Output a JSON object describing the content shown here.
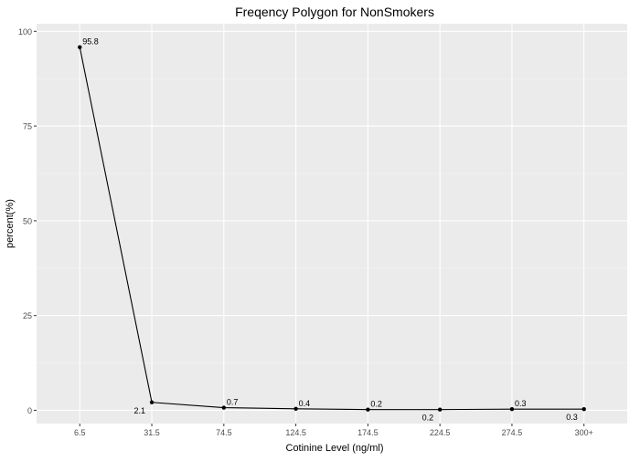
{
  "chart_data": {
    "type": "line",
    "title": "Freqency Polygon for NonSmokers",
    "xlabel": "Cotinine Level (ng/ml)",
    "ylabel": "percent(%)",
    "categories": [
      "6.5",
      "31.5",
      "74.5",
      "124.5",
      "174.5",
      "224.5",
      "274.5",
      "300+"
    ],
    "values": [
      95.8,
      2.1,
      0.7,
      0.4,
      0.2,
      0.2,
      0.3,
      0.3
    ],
    "data_labels": [
      {
        "index": 0,
        "text": "95.8",
        "side": "above-right"
      },
      {
        "index": 1,
        "text": "2.1",
        "side": "below-left"
      },
      {
        "index": 2,
        "text": "0.7",
        "side": "above-right"
      },
      {
        "index": 3,
        "text": "0.4",
        "side": "above-right"
      },
      {
        "index": 4,
        "text": "0.2",
        "side": "above-right"
      },
      {
        "index": 5,
        "text": "0.2",
        "side": "below-left"
      },
      {
        "index": 6,
        "text": "0.3",
        "side": "above-right"
      },
      {
        "index": 7,
        "text": "0.3",
        "side": "below-left"
      }
    ],
    "y_ticks": [
      0,
      25,
      50,
      75,
      100
    ],
    "ylim": [
      -3.5,
      102
    ],
    "grid": true,
    "colors": {
      "panel": "#EBEBEB",
      "grid_major": "#FFFFFF",
      "grid_minor": "#F5F5F5",
      "line": "#000000",
      "point": "#000000",
      "text": "#000000",
      "tick_text": "#4D4D4D",
      "tick_mark": "#333333"
    }
  }
}
